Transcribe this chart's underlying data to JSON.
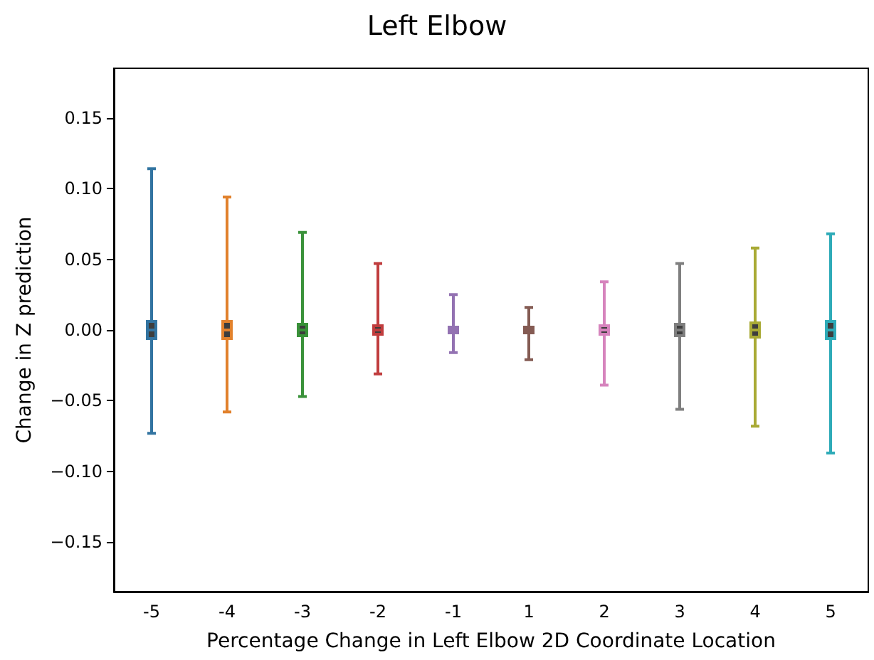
{
  "chart_data": {
    "type": "box",
    "title": "Left Elbow",
    "xlabel": "Percentage Change in Left Elbow 2D Coordinate Location",
    "ylabel": "Change in Z prediction",
    "categories": [
      "-5",
      "-4",
      "-3",
      "-2",
      "-1",
      "1",
      "2",
      "3",
      "4",
      "5"
    ],
    "colors": [
      "#3274a1",
      "#e1812c",
      "#3a923a",
      "#c03d3e",
      "#9372b2",
      "#845b53",
      "#d684bd",
      "#7f7f7f",
      "#a9aa35",
      "#2eabb8"
    ],
    "boxes": [
      {
        "low": -0.073,
        "q1": -0.006,
        "median": 0,
        "q3": 0.006,
        "high": 0.114
      },
      {
        "low": -0.058,
        "q1": -0.006,
        "median": 0,
        "q3": 0.006,
        "high": 0.094
      },
      {
        "low": -0.047,
        "q1": -0.004,
        "median": 0,
        "q3": 0.004,
        "high": 0.069
      },
      {
        "low": -0.031,
        "q1": -0.003,
        "median": 0,
        "q3": 0.003,
        "high": 0.047
      },
      {
        "low": -0.016,
        "q1": -0.002,
        "median": 0,
        "q3": 0.002,
        "high": 0.025
      },
      {
        "low": -0.021,
        "q1": -0.002,
        "median": 0,
        "q3": 0.002,
        "high": 0.016
      },
      {
        "low": -0.039,
        "q1": -0.003,
        "median": 0,
        "q3": 0.003,
        "high": 0.034
      },
      {
        "low": -0.056,
        "q1": -0.004,
        "median": 0,
        "q3": 0.004,
        "high": 0.047
      },
      {
        "low": -0.068,
        "q1": -0.005,
        "median": 0,
        "q3": 0.005,
        "high": 0.058
      },
      {
        "low": -0.087,
        "q1": -0.006,
        "median": 0,
        "q3": 0.006,
        "high": 0.068
      }
    ],
    "ylim": [
      -0.185,
      0.185
    ],
    "yticks": [
      {
        "value": -0.15,
        "label": "−0.15"
      },
      {
        "value": -0.1,
        "label": "−0.10"
      },
      {
        "value": -0.05,
        "label": "−0.05"
      },
      {
        "value": 0,
        "label": "0.00"
      },
      {
        "value": 0.05,
        "label": "0.05"
      },
      {
        "value": 0.1,
        "label": "0.10"
      },
      {
        "value": 0.15,
        "label": "0.15"
      }
    ],
    "grid": false
  }
}
